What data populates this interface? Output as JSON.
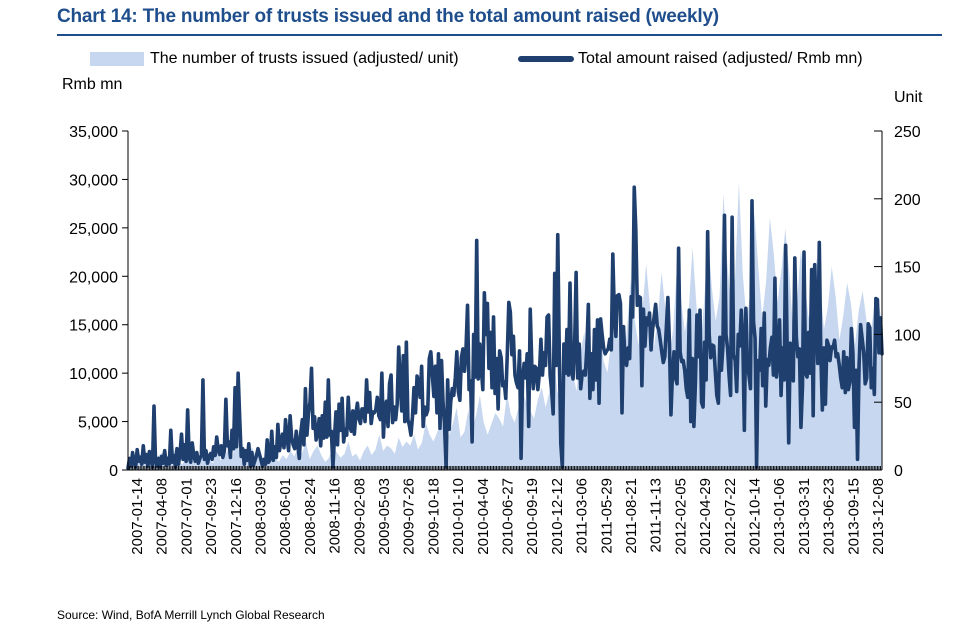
{
  "title": "Chart 14: The number of trusts issued and the total amount raised (weekly)",
  "source": "Source: Wind, BofA Merrill Lynch Global Research",
  "colors": {
    "title": "#1F4E8C",
    "area": "#C6D7EF",
    "line": "#1F3F6F"
  },
  "chart_data": {
    "type": "line",
    "title": "Chart 14: The number of trusts issued and the total amount raised (weekly)",
    "left_axis": {
      "unit": "Rmb mn",
      "range": [
        0,
        35000
      ],
      "ticks": [
        "35,000",
        "30,000",
        "25,000",
        "20,000",
        "15,000",
        "10,000",
        "5,000",
        "0"
      ],
      "tick_values": [
        35000,
        30000,
        25000,
        20000,
        15000,
        10000,
        5000,
        0
      ]
    },
    "right_axis": {
      "unit": "Unit",
      "range": [
        0,
        250
      ],
      "ticks": [
        "250",
        "200",
        "150",
        "100",
        "50",
        "0"
      ],
      "tick_values": [
        250,
        200,
        150,
        100,
        50,
        0
      ]
    },
    "x_ticks": [
      "2007-01-14",
      "2007-04-08",
      "2007-07-01",
      "2007-09-23",
      "2007-12-16",
      "2008-03-09",
      "2008-06-01",
      "2008-08-24",
      "2008-11-16",
      "2009-02-08",
      "2009-05-03",
      "2009-07-26",
      "2009-10-18",
      "2010-01-10",
      "2010-04-04",
      "2010-06-27",
      "2010-09-19",
      "2010-12-12",
      "2011-03-06",
      "2011-05-29",
      "2011-08-21",
      "2011-11-13",
      "2012-02-05",
      "2012-04-29",
      "2012-07-22",
      "2012-10-14",
      "2013-01-06",
      "2013-03-31",
      "2013-06-23",
      "2013-09-15",
      "2013-12-08"
    ],
    "legend_placement": "top",
    "grid": false,
    "series": [
      {
        "name": "The number of trusts issued (adjusted/ unit)",
        "axis": "right",
        "type": "area",
        "values": [
          3,
          10,
          5,
          12,
          9,
          7,
          16,
          6,
          11,
          13,
          5,
          21,
          14,
          8,
          4,
          9,
          12,
          7,
          9,
          14,
          19,
          8,
          5,
          18,
          7,
          11,
          15,
          9,
          23,
          10,
          6,
          8,
          17,
          11,
          9,
          7,
          5,
          20,
          9,
          6,
          11,
          8,
          14,
          10,
          17,
          12,
          21,
          8,
          14,
          18,
          11,
          6,
          9,
          17,
          13,
          9,
          12,
          21,
          10,
          12,
          7,
          14,
          18,
          11,
          15,
          26,
          14,
          18,
          16,
          12,
          24,
          17,
          21,
          18,
          26,
          15,
          20,
          35,
          26,
          21,
          28,
          38,
          22,
          26,
          34,
          46,
          24,
          28,
          44,
          30,
          40,
          55,
          35,
          26,
          34,
          42,
          38,
          32,
          56,
          41,
          35,
          46,
          58,
          50,
          44,
          38,
          52,
          61,
          46,
          58,
          86,
          58,
          52,
          82,
          96,
          72,
          58,
          86,
          102,
          70,
          58,
          88,
          110,
          80,
          72,
          96,
          136,
          94,
          72,
          102,
          140,
          112,
          92,
          116,
          152,
          120,
          90,
          112,
          146,
          118,
          84,
          104,
          152,
          126,
          102,
          118,
          164,
          122,
          88,
          124,
          172,
          134,
          110,
          128,
          204,
          152,
          120,
          142,
          212,
          144,
          110,
          132,
          190,
          150,
          112,
          138,
          186,
          160,
          124,
          148,
          178,
          146,
          104,
          122,
          162,
          138,
          112,
          126,
          156,
          136,
          104,
          120,
          150,
          128,
          96,
          114,
          138,
          122,
          92,
          118,
          132,
          110,
          98,
          122,
          126,
          108
        ]
      },
      {
        "name": "Total amount raised (adjusted/ Rmb mn)",
        "axis": "left",
        "type": "line",
        "values": [
          200,
          1200,
          400,
          1800,
          700,
          300,
          2100,
          900,
          1300,
          600,
          2500,
          800,
          1600,
          400,
          1900,
          1100,
          300,
          6600,
          900,
          400,
          1200,
          300,
          1400,
          700,
          2000,
          500,
          1200,
          600,
          4100,
          800,
          1500,
          300,
          2200,
          600,
          1700,
          3700,
          1100,
          2600,
          900,
          6200,
          1300,
          800,
          2800,
          1500,
          900,
          1800,
          700,
          1200,
          1500,
          9300,
          1100,
          2000,
          700,
          1400,
          1700,
          1100,
          2400,
          1500,
          3400,
          2100,
          1600,
          2500,
          1300,
          2000,
          7300,
          2500,
          2900,
          1300,
          4100,
          2200,
          8500,
          2400,
          10000,
          5500,
          1400,
          2200,
          600,
          2000,
          1000,
          2700,
          400,
          1800,
          500,
          1000,
          1500,
          2200,
          1600,
          1000,
          400,
          1100,
          600,
          3100,
          800,
          1200,
          4000,
          1000,
          2400,
          1300,
          4700,
          2000,
          2900,
          3700,
          2300,
          5200,
          3300,
          2000,
          5600,
          3300,
          2600,
          2200,
          4000,
          2600,
          1200,
          3900,
          5200,
          2600,
          8400,
          3600,
          5800,
          7000,
          10500,
          4300,
          5500,
          3100,
          3800,
          5300,
          2500,
          5600,
          3300,
          7000,
          3400,
          9300,
          3600,
          4000,
          300,
          3400,
          6000,
          2600,
          6800,
          4100,
          7400,
          2900,
          4200,
          3600,
          7500,
          4500,
          4000,
          6100,
          3700,
          5800,
          6900,
          5300,
          4800,
          6300,
          6300,
          5000,
          9300,
          6000,
          8000,
          4800,
          6000,
          5900,
          6200,
          7500,
          5600,
          5200,
          10000,
          3400,
          6500,
          7100,
          4500,
          8900,
          9800,
          4900,
          6500,
          5200,
          6800,
          12700,
          8800,
          6100,
          11800,
          5000,
          13200,
          5200,
          4600,
          3600,
          5500,
          8500,
          5900,
          9700,
          9000,
          7500,
          10700,
          4500,
          6500,
          5700,
          6200,
          11500,
          12200,
          9800,
          7600,
          10700,
          5900,
          12000,
          4300,
          11300,
          6900,
          4500,
          300,
          9300,
          4200,
          7000,
          8400,
          7700,
          9500,
          12200,
          8100,
          7200,
          11600,
          12500,
          10200,
          12500,
          17000,
          8300,
          9200,
          2900,
          14000,
          9600,
          23700,
          9400,
          13000,
          10500,
          8300,
          18300,
          14000,
          17200,
          10500,
          14200,
          8500,
          15800,
          7900,
          11500,
          6300,
          12300,
          11600,
          8700,
          9100,
          7400,
          12000,
          17300,
          16300,
          11900,
          13800,
          9800,
          9000,
          8500,
          12300,
          1200,
          9500,
          11000,
          9500,
          12000,
          4500,
          16600,
          11000,
          8400,
          10700,
          10500,
          8300,
          10000,
          13500,
          9800,
          12100,
          10800,
          15800,
          16000,
          9800,
          8200,
          5800,
          20300,
          10800,
          24300,
          12000,
          2700,
          300,
          13000,
          10000,
          14500,
          9800,
          19300,
          10200,
          9400,
          12800,
          20400,
          9500,
          13000,
          8400,
          10000,
          10200,
          9800,
          12500,
          17100,
          7400,
          12000,
          8300,
          14500,
          9300,
          15500,
          6900,
          15600,
          14000,
          12600,
          12000,
          12300,
          12500,
          13500,
          12400,
          22300,
          16000,
          13800,
          18000,
          18100,
          17200,
          5900,
          14800,
          11300,
          10800,
          12600,
          11500,
          17900,
          15800,
          29200,
          25000,
          17000,
          17900,
          17800,
          8700,
          16600,
          12800,
          15700,
          15000,
          16200,
          12400,
          14500,
          15800,
          17100,
          14900,
          14500,
          13400,
          12200,
          11100,
          11700,
          14700,
          17800,
          13200,
          5700,
          10000,
          12200,
          9500,
          8900,
          22900,
          12200,
          11200,
          11300,
          10300,
          8400,
          7500,
          16500,
          5000,
          11500,
          4500,
          9000,
          16000,
          11700,
          16500,
          7000,
          6500,
          13200,
          9300,
          24600,
          14000,
          11600,
          12900,
          12800,
          10200,
          7700,
          6900,
          13700,
          10300,
          12800,
          26300,
          14000,
          12600,
          9800,
          7700,
          26100,
          11900,
          11300,
          8100,
          14000,
          12800,
          16500,
          13500,
          4100,
          16700,
          11000,
          9800,
          8400,
          27800,
          15300,
          13600,
          300,
          11300,
          10300,
          14600,
          8700,
          16200,
          6600,
          11400,
          10800,
          12600,
          13700,
          9800,
          19800,
          9600,
          11300,
          15500,
          7700,
          12600,
          9300,
          23200,
          12500,
          2800,
          13100,
          11000,
          9200,
          21900,
          13700,
          11700,
          12500,
          4400,
          8600,
          22500,
          10000,
          9600,
          14200,
          10000,
          20700,
          5600,
          21200,
          16000,
          11000,
          23500,
          12000,
          6200,
          12600,
          6800,
          13400,
          12900,
          11300,
          12700,
          12600,
          13400,
          11700,
          12000,
          10900,
          9500,
          8500,
          12200,
          8000,
          11600,
          8300,
          9100,
          14600,
          12000,
          4400,
          10300,
          1100,
          10800,
          15000,
          13600,
          12200,
          8900,
          9500,
          15100,
          14700,
          8500,
          10500,
          7800,
          17700,
          17600,
          12100,
          15700,
          12000
        ]
      }
    ]
  }
}
